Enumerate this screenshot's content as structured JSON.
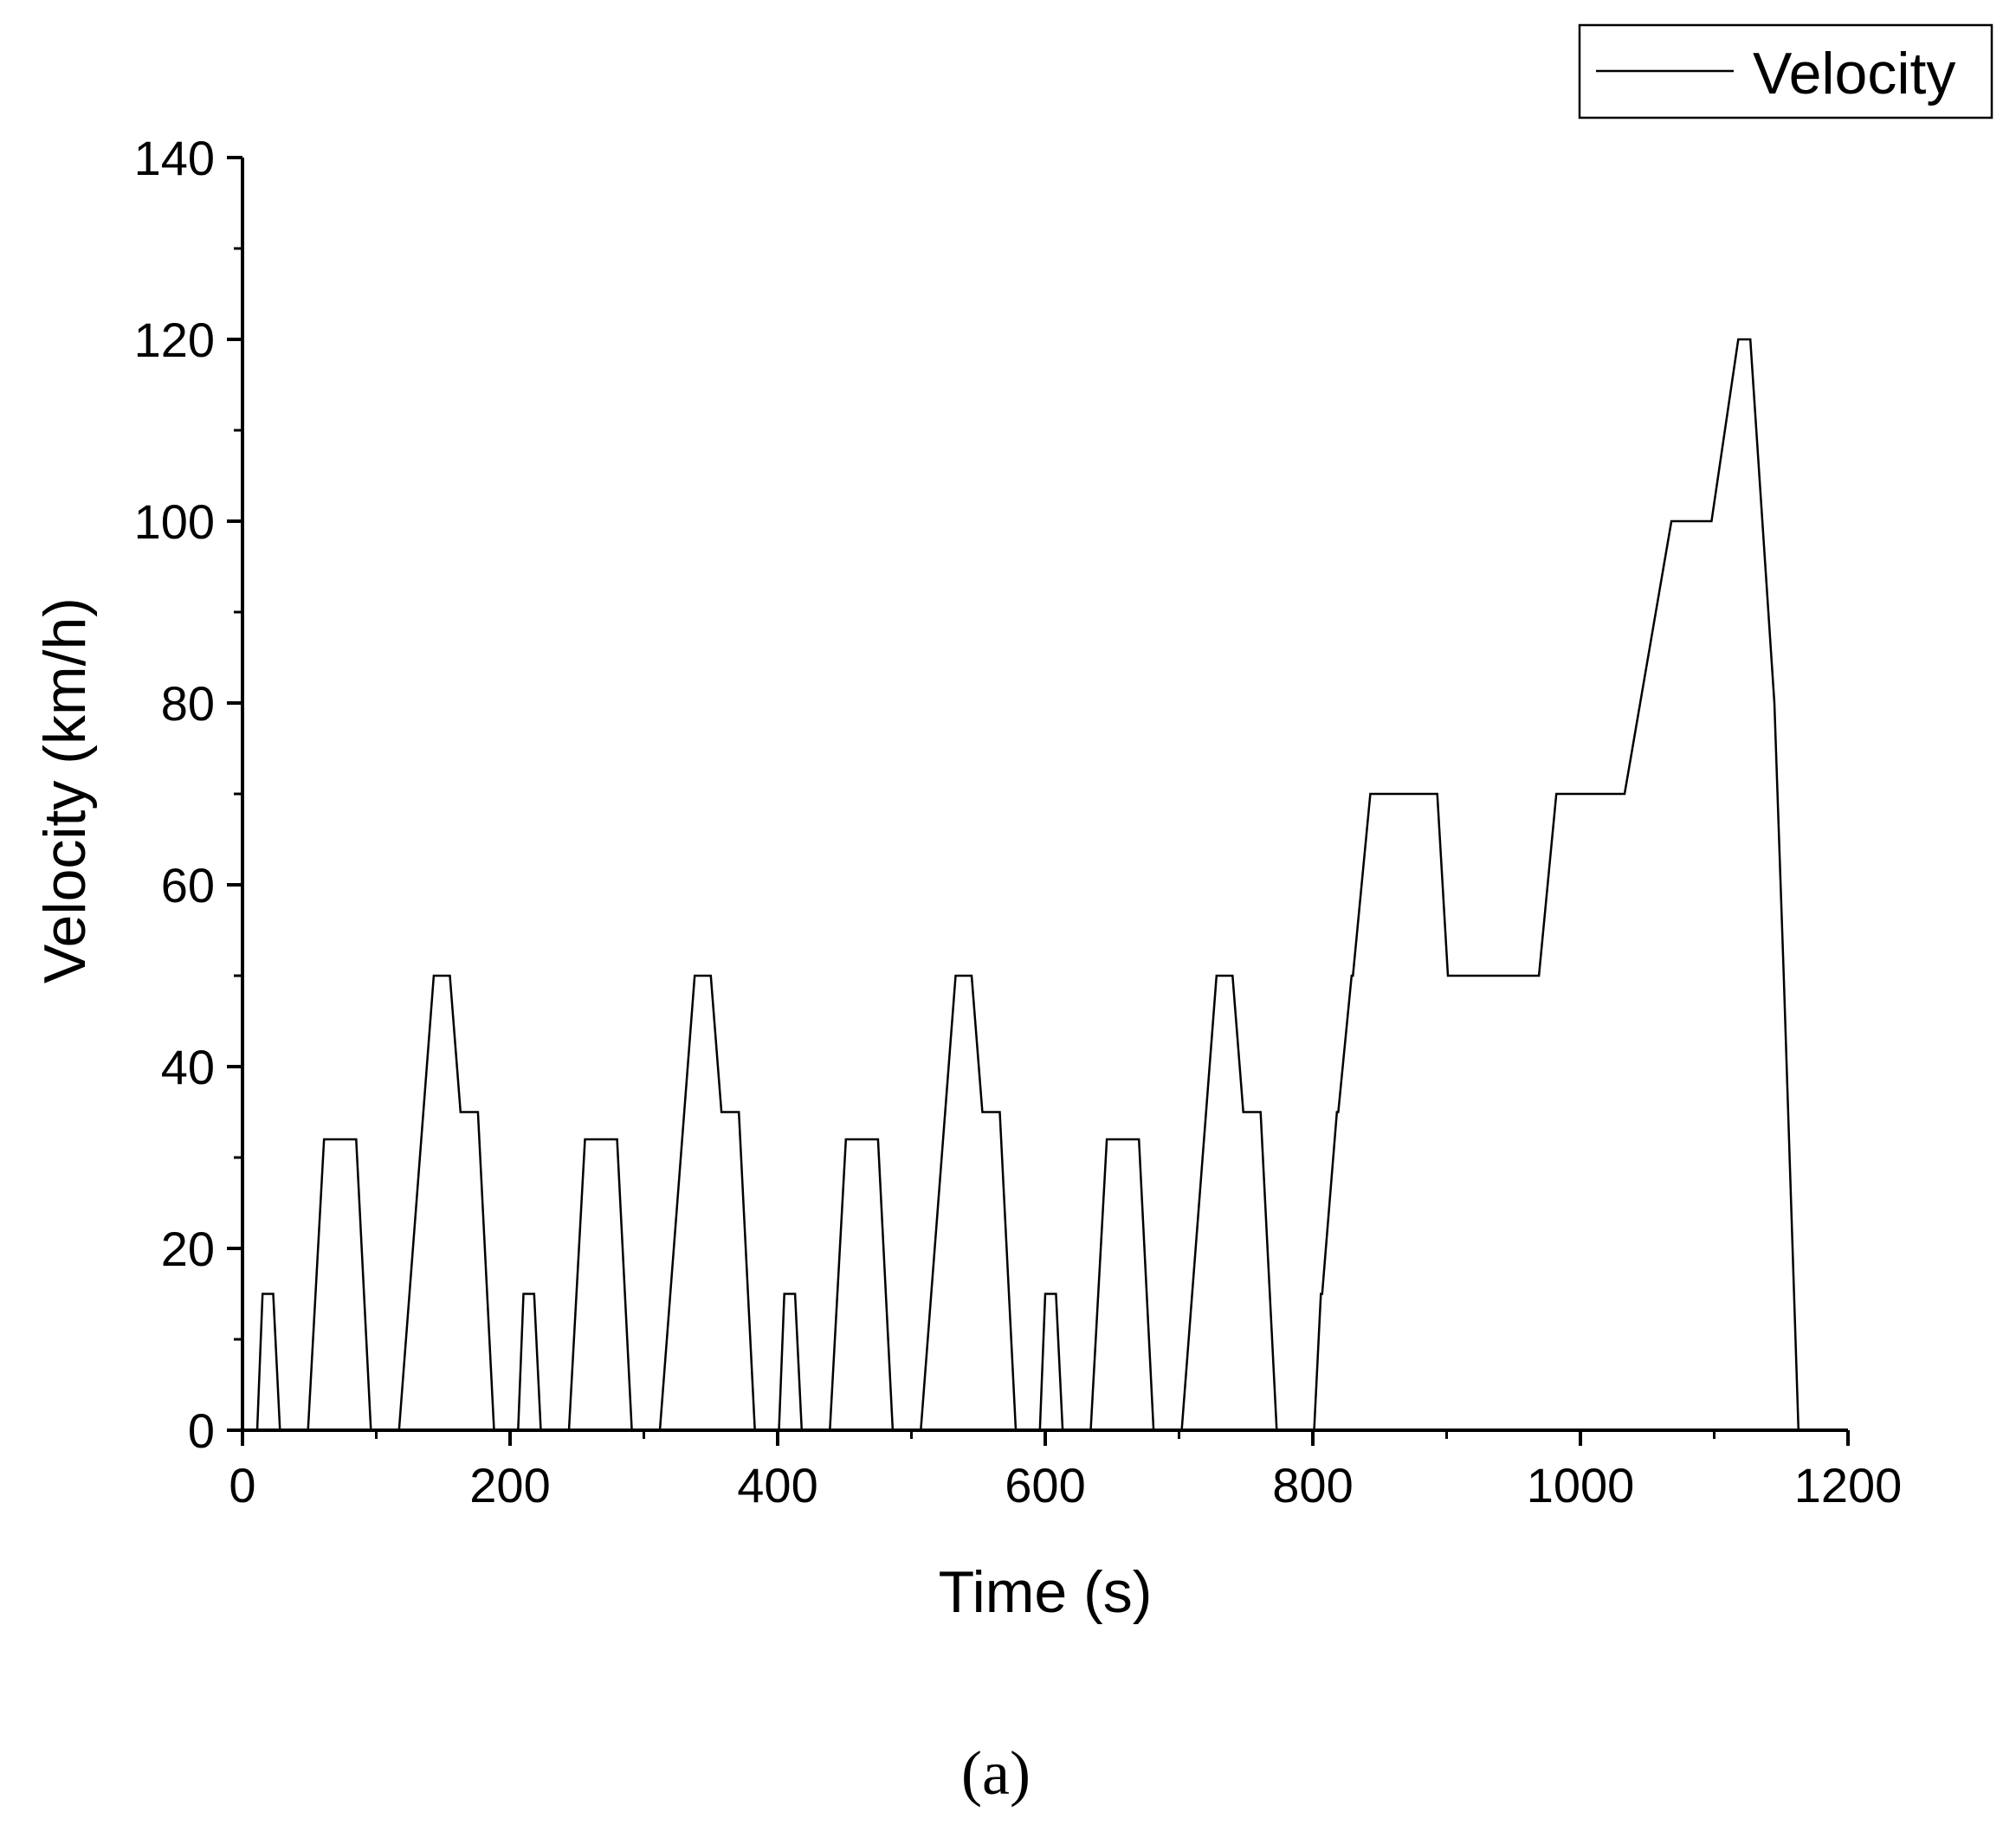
{
  "panel_label": "(a)",
  "chart_data": {
    "type": "line",
    "title": "",
    "xlabel": "Time (s)",
    "ylabel": "Velocity (km/h)",
    "xlim": [
      0,
      1200
    ],
    "ylim": [
      0,
      140
    ],
    "x_ticks": [
      0,
      200,
      400,
      600,
      800,
      1000,
      1200
    ],
    "y_ticks": [
      0,
      20,
      40,
      60,
      80,
      100,
      120,
      140
    ],
    "x_tick_labels": [
      "0",
      "200",
      "400",
      "600",
      "800",
      "1000",
      "1200"
    ],
    "y_tick_labels": [
      "0",
      "20",
      "40",
      "60",
      "80",
      "100",
      "120",
      "140"
    ],
    "grid": false,
    "legend_position": "top-right",
    "series": [
      {
        "name": "Velocity",
        "color": "#000000",
        "points": [
          [
            0,
            0
          ],
          [
            11,
            0
          ],
          [
            15,
            15
          ],
          [
            23,
            15
          ],
          [
            28,
            0
          ],
          [
            49,
            0
          ],
          [
            61,
            32
          ],
          [
            85,
            32
          ],
          [
            96,
            0
          ],
          [
            117,
            0
          ],
          [
            143,
            50
          ],
          [
            155,
            50
          ],
          [
            163,
            35
          ],
          [
            176,
            35
          ],
          [
            188,
            0
          ],
          [
            206,
            0
          ],
          [
            210,
            15
          ],
          [
            218,
            15
          ],
          [
            223,
            0
          ],
          [
            244,
            0
          ],
          [
            256,
            32
          ],
          [
            280,
            32
          ],
          [
            291,
            0
          ],
          [
            312,
            0
          ],
          [
            338,
            50
          ],
          [
            350,
            50
          ],
          [
            358,
            35
          ],
          [
            371,
            35
          ],
          [
            383,
            0
          ],
          [
            401,
            0
          ],
          [
            405,
            15
          ],
          [
            413,
            15
          ],
          [
            418,
            0
          ],
          [
            439,
            0
          ],
          [
            451,
            32
          ],
          [
            475,
            32
          ],
          [
            486,
            0
          ],
          [
            507,
            0
          ],
          [
            533,
            50
          ],
          [
            545,
            50
          ],
          [
            553,
            35
          ],
          [
            566,
            35
          ],
          [
            578,
            0
          ],
          [
            596,
            0
          ],
          [
            600,
            15
          ],
          [
            608,
            15
          ],
          [
            613,
            0
          ],
          [
            634,
            0
          ],
          [
            646,
            32
          ],
          [
            670,
            32
          ],
          [
            681,
            0
          ],
          [
            702,
            0
          ],
          [
            728,
            50
          ],
          [
            740,
            50
          ],
          [
            748,
            35
          ],
          [
            761,
            35
          ],
          [
            773,
            0
          ],
          [
            801,
            0
          ],
          [
            806,
            15
          ],
          [
            807,
            15
          ],
          [
            818,
            35
          ],
          [
            819,
            35
          ],
          [
            829,
            50
          ],
          [
            830,
            50
          ],
          [
            843,
            70
          ],
          [
            893,
            70
          ],
          [
            901,
            50
          ],
          [
            969,
            50
          ],
          [
            982,
            70
          ],
          [
            1033,
            70
          ],
          [
            1068,
            100
          ],
          [
            1098,
            100
          ],
          [
            1118,
            120
          ],
          [
            1127,
            120
          ],
          [
            1145,
            80
          ],
          [
            1152,
            50
          ],
          [
            1163,
            0
          ]
        ]
      }
    ]
  }
}
